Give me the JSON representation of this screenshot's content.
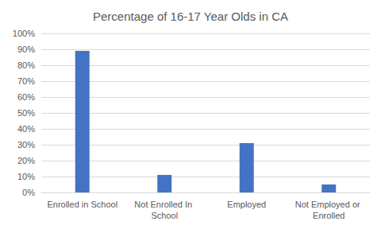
{
  "chart_data": {
    "type": "bar",
    "title": "Percentage of 16-17 Year Olds in CA",
    "categories": [
      "Enrolled in School",
      "Not Enrolled In School",
      "Employed",
      "Not Employed or Enrolled"
    ],
    "values": [
      89,
      11,
      31,
      5
    ],
    "color": "#4472c4",
    "ylim": [
      0,
      100
    ],
    "yticks": [
      {
        "value": 0,
        "label": "0%"
      },
      {
        "value": 10,
        "label": "10%"
      },
      {
        "value": 20,
        "label": "20%"
      },
      {
        "value": 30,
        "label": "30%"
      },
      {
        "value": 40,
        "label": "40%"
      },
      {
        "value": 50,
        "label": "50%"
      },
      {
        "value": 60,
        "label": "60%"
      },
      {
        "value": 70,
        "label": "70%"
      },
      {
        "value": 80,
        "label": "80%"
      },
      {
        "value": 90,
        "label": "90%"
      },
      {
        "value": 100,
        "label": "100%"
      }
    ],
    "grid": true
  }
}
